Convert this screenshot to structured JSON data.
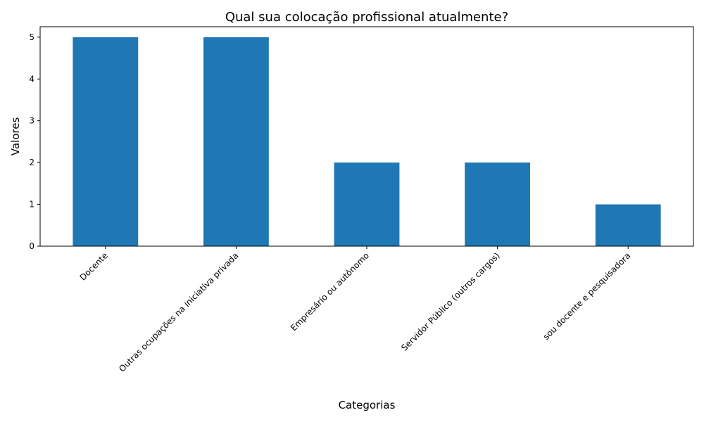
{
  "chart_data": {
    "type": "bar",
    "title": "Qual sua colocação profissional atualmente?",
    "xlabel": "Categorias",
    "ylabel": "Valores",
    "categories": [
      "Docente",
      "Outras ocupações na iniciativa privada",
      "Empresário ou autônomo",
      "Servidor Público (outros cargos)",
      "sou docente e pesquisadora"
    ],
    "values": [
      5,
      5,
      2,
      2,
      1
    ],
    "ylim": [
      0,
      5.25
    ],
    "yticks": [
      "0",
      "1",
      "2",
      "3",
      "4",
      "5"
    ],
    "grid": false,
    "legend": "none",
    "bar_color": "#1f77b4"
  }
}
